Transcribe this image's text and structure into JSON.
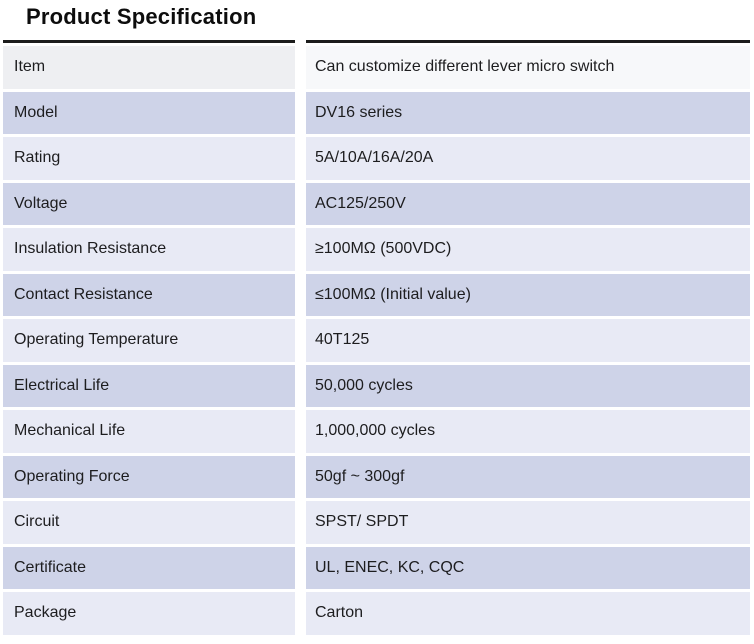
{
  "title": "Product Specification",
  "colors": {
    "row_dark": "#ced3e8",
    "row_light": "#e8eaf5",
    "header_left": "#eeeff2",
    "header_right": "#f7f8fa",
    "top_rule": "#1c1c1c"
  },
  "table": {
    "rows": [
      {
        "label": "Item",
        "value": "Can customize different lever micro switch",
        "variant": "header"
      },
      {
        "label": "Model",
        "value": "DV16 series",
        "variant": "dark"
      },
      {
        "label": "Rating",
        "value": "5A/10A/16A/20A",
        "variant": "light"
      },
      {
        "label": "Voltage",
        "value": "AC125/250V",
        "variant": "dark"
      },
      {
        "label": "Insulation Resistance",
        "value": "≥100MΩ (500VDC)",
        "variant": "light"
      },
      {
        "label": "Contact Resistance",
        "value": "≤100MΩ (Initial value)",
        "variant": "dark"
      },
      {
        "label": "Operating Temperature",
        "value": "40T125",
        "variant": "light"
      },
      {
        "label": "Electrical Life",
        "value": "50,000 cycles",
        "variant": "dark"
      },
      {
        "label": "Mechanical Life",
        "value": "1,000,000 cycles",
        "variant": "light"
      },
      {
        "label": "Operating Force",
        "value": "50gf ~ 300gf",
        "variant": "dark"
      },
      {
        "label": "Circuit",
        "value": "SPST/ SPDT",
        "variant": "light"
      },
      {
        "label": "Certificate",
        "value": "UL, ENEC, KC, CQC",
        "variant": "dark"
      },
      {
        "label": "Package",
        "value": "Carton",
        "variant": "light"
      }
    ]
  }
}
